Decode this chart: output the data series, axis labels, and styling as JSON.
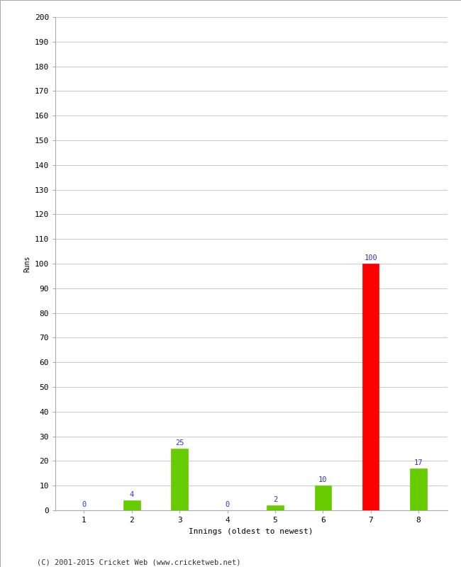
{
  "xlabel": "Innings (oldest to newest)",
  "ylabel": "Runs",
  "categories": [
    "1",
    "2",
    "3",
    "4",
    "5",
    "6",
    "7",
    "8"
  ],
  "values": [
    0,
    4,
    25,
    0,
    2,
    10,
    100,
    17
  ],
  "bar_colors": [
    "#66cc00",
    "#66cc00",
    "#66cc00",
    "#66cc00",
    "#66cc00",
    "#66cc00",
    "#ff0000",
    "#66cc00"
  ],
  "ylim": [
    0,
    200
  ],
  "yticks": [
    0,
    10,
    20,
    30,
    40,
    50,
    60,
    70,
    80,
    90,
    100,
    110,
    120,
    130,
    140,
    150,
    160,
    170,
    180,
    190,
    200
  ],
  "label_color": "#3333cc",
  "label_fontsize": 7.5,
  "axis_tick_fontsize": 8,
  "xlabel_fontsize": 8,
  "ylabel_fontsize": 7,
  "footer": "(C) 2001-2015 Cricket Web (www.cricketweb.net)",
  "footer_fontsize": 7.5,
  "background_color": "#ffffff",
  "grid_color": "#cccccc",
  "bar_width": 0.35,
  "spine_color": "#aaaaaa"
}
